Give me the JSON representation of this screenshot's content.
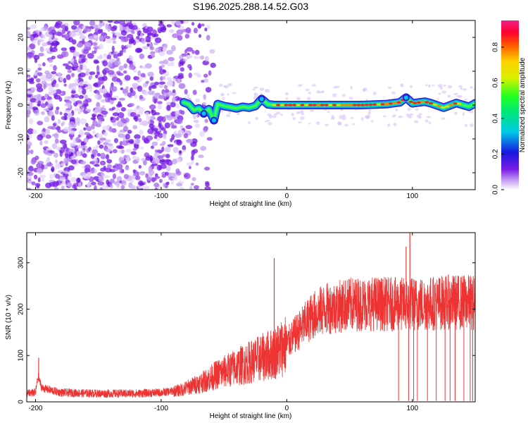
{
  "title": "S196.2025.288.14.52.G03",
  "chart_data": [
    {
      "type": "heatmap",
      "name": "spectrogram",
      "xlabel": "Height of straight line (km)",
      "ylabel": "Frequency (Hz)",
      "xlim": [
        -207,
        150
      ],
      "ylim": [
        -25,
        25
      ],
      "xticks": [
        -200,
        -100,
        0,
        100
      ],
      "yticks": [
        -20,
        -10,
        0,
        10,
        20
      ],
      "colorbar": {
        "label": "Normalized spectral amplitude",
        "range": [
          0,
          0.95
        ],
        "ticks": [
          0.0,
          0.2,
          0.4,
          0.6,
          0.8
        ]
      },
      "noise_region_x": [
        -207,
        -58
      ],
      "signal_track": [
        {
          "x": -82,
          "y": 0.8
        },
        {
          "x": -78,
          "y": 0.2
        },
        {
          "x": -74,
          "y": -1.5
        },
        {
          "x": -70,
          "y": -1.0
        },
        {
          "x": -66,
          "y": -2.5
        },
        {
          "x": -62,
          "y": -1.2
        },
        {
          "x": -58,
          "y": -4.5
        },
        {
          "x": -55,
          "y": 0.3
        },
        {
          "x": -50,
          "y": -0.3
        },
        {
          "x": -45,
          "y": -0.6
        },
        {
          "x": -40,
          "y": -1.0
        },
        {
          "x": -35,
          "y": -0.5
        },
        {
          "x": -30,
          "y": -0.8
        },
        {
          "x": -25,
          "y": -0.3
        },
        {
          "x": -20,
          "y": 1.8
        },
        {
          "x": -15,
          "y": 0.2
        },
        {
          "x": -10,
          "y": 0.0
        },
        {
          "x": 0,
          "y": 0.0
        },
        {
          "x": 20,
          "y": 0.0
        },
        {
          "x": 40,
          "y": 0.0
        },
        {
          "x": 60,
          "y": 0.0
        },
        {
          "x": 80,
          "y": 0.3
        },
        {
          "x": 90,
          "y": 0.8
        },
        {
          "x": 95,
          "y": 2.2
        },
        {
          "x": 100,
          "y": 0.5
        },
        {
          "x": 110,
          "y": 1.0
        },
        {
          "x": 115,
          "y": 0.5
        },
        {
          "x": 125,
          "y": -0.8
        },
        {
          "x": 135,
          "y": 0.6
        },
        {
          "x": 145,
          "y": -0.5
        },
        {
          "x": 150,
          "y": 0.5
        }
      ]
    },
    {
      "type": "line",
      "name": "snr",
      "xlabel": "Height of straight line (km)",
      "ylabel": "SNR (10 * v/v)",
      "xlim": [
        -207,
        150
      ],
      "ylim": [
        0,
        365
      ],
      "xticks": [
        -200,
        -100,
        0,
        100
      ],
      "yticks": [
        0,
        100,
        200,
        300
      ],
      "color": "#ee3333",
      "envelope": [
        {
          "x": -207,
          "y": 18
        },
        {
          "x": -200,
          "y": 20
        },
        {
          "x": -198,
          "y": 55
        },
        {
          "x": -195,
          "y": 30
        },
        {
          "x": -180,
          "y": 20
        },
        {
          "x": -150,
          "y": 18
        },
        {
          "x": -120,
          "y": 18
        },
        {
          "x": -100,
          "y": 20
        },
        {
          "x": -85,
          "y": 25
        },
        {
          "x": -75,
          "y": 35
        },
        {
          "x": -65,
          "y": 45
        },
        {
          "x": -55,
          "y": 60
        },
        {
          "x": -40,
          "y": 75
        },
        {
          "x": -30,
          "y": 85
        },
        {
          "x": -20,
          "y": 95
        },
        {
          "x": -10,
          "y": 105
        },
        {
          "x": 0,
          "y": 125
        },
        {
          "x": 10,
          "y": 155
        },
        {
          "x": 20,
          "y": 185
        },
        {
          "x": 30,
          "y": 200
        },
        {
          "x": 50,
          "y": 210
        },
        {
          "x": 70,
          "y": 212
        },
        {
          "x": 90,
          "y": 210
        },
        {
          "x": 110,
          "y": 212
        },
        {
          "x": 130,
          "y": 215
        },
        {
          "x": 150,
          "y": 215
        }
      ],
      "spikes": [
        {
          "x": -197.5,
          "y": 95
        },
        {
          "x": -10,
          "y": 310
        },
        {
          "x": 98,
          "y": 365
        },
        {
          "x": 95,
          "y": 335
        }
      ],
      "dropouts": [
        89,
        97,
        101,
        104,
        112,
        119,
        126,
        130,
        134,
        141,
        146,
        148
      ]
    }
  ]
}
